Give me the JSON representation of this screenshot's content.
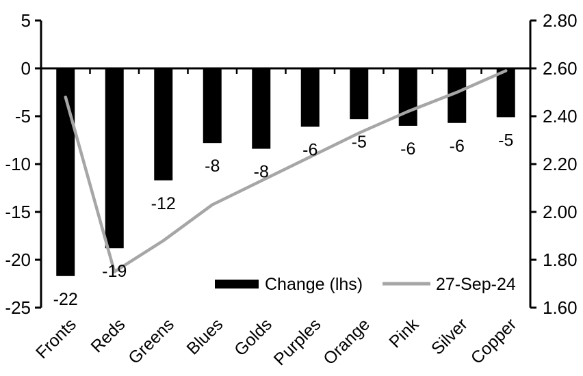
{
  "chart_data": {
    "type": "combo-bar-line",
    "title": "",
    "categories": [
      "Fronts",
      "Reds",
      "Greens",
      "Blues",
      "Golds",
      "Purples",
      "Orange",
      "Pink",
      "Silver",
      "Copper"
    ],
    "series": [
      {
        "name": "Change (lhs)",
        "type": "bar",
        "axis": "left",
        "color": "#000000",
        "values": [
          -22,
          -19,
          -12,
          -8,
          -8,
          -6,
          -5,
          -6,
          -6,
          -5
        ],
        "values_precise": [
          -21.7,
          -18.8,
          -11.7,
          -7.8,
          -8.4,
          -6.1,
          -5.3,
          -6.0,
          -5.7,
          -5.1
        ],
        "data_labels": [
          "-22",
          "-19",
          "-12",
          "-8",
          "-8",
          "-6",
          "-5",
          "-6",
          "-6",
          "-5"
        ]
      },
      {
        "name": "27-Sep-24",
        "type": "line",
        "axis": "right",
        "color": "#a6a6a6",
        "values": [
          2.48,
          1.75,
          1.88,
          2.03,
          2.13,
          2.23,
          2.33,
          2.42,
          2.5,
          2.59
        ]
      }
    ],
    "left_axis": {
      "min": -25,
      "max": 5,
      "tick_interval": 5,
      "tick_labels": [
        "5",
        "0",
        "-5",
        "-10",
        "-15",
        "-20",
        "-25"
      ]
    },
    "right_axis": {
      "min": 1.6,
      "max": 2.8,
      "tick_interval": 0.2,
      "tick_labels": [
        "2.80",
        "2.60",
        "2.40",
        "2.20",
        "2.00",
        "1.80",
        "1.60"
      ]
    },
    "legend": {
      "position": "bottom-inside"
    },
    "grid": false,
    "background_color": "#ffffff",
    "axis_color": "#000000"
  }
}
